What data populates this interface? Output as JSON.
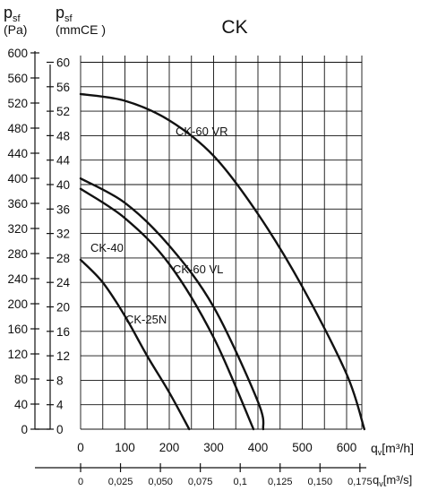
{
  "chart_data": {
    "type": "line",
    "title": "CK",
    "left_axis": {
      "symbol": "p",
      "sub": "sf",
      "unit": "(Pa)",
      "ylim": [
        0,
        600
      ],
      "ticks": [
        0,
        40,
        80,
        120,
        160,
        200,
        240,
        280,
        320,
        360,
        400,
        440,
        480,
        520,
        560,
        600
      ]
    },
    "right_axis": {
      "symbol": "p",
      "sub": "sf",
      "unit": "(mmCE )",
      "ylim": [
        0,
        60
      ],
      "ticks": [
        0,
        4,
        8,
        12,
        16,
        20,
        24,
        28,
        32,
        36,
        40,
        44,
        48,
        52,
        56,
        60
      ]
    },
    "x_axis_primary": {
      "symbol": "q",
      "sub": "v",
      "unit": "[m³/h]",
      "xlim": [
        0,
        700
      ],
      "ticks": [
        0,
        100,
        200,
        300,
        400,
        500,
        600
      ]
    },
    "x_axis_secondary": {
      "symbol": "q",
      "sub": "v",
      "unit": "[m³/s]",
      "ticks": [
        0,
        0.025,
        0.05,
        0.075,
        0.1,
        0.125,
        0.15,
        0.175
      ],
      "tick_labels": [
        "0",
        "0,025",
        "0,050",
        "0,075",
        "0,1",
        "0,125",
        "0,150",
        "0,175"
      ]
    },
    "grid": true,
    "series": [
      {
        "name": "CK-60 VR",
        "x": [
          0,
          100,
          200,
          300,
          400,
          500,
          600,
          640
        ],
        "y": [
          548,
          537,
          505,
          447,
          352,
          233,
          90,
          0
        ]
      },
      {
        "name": "CK-60 VL",
        "x": [
          0,
          100,
          200,
          300,
          400,
          412
        ],
        "y": [
          410,
          370,
          300,
          200,
          45,
          0
        ]
      },
      {
        "name": "CK-40",
        "x": [
          0,
          100,
          200,
          300,
          390
        ],
        "y": [
          393,
          345,
          270,
          150,
          0
        ]
      },
      {
        "name": "CK-25N",
        "x": [
          0,
          50,
          100,
          150,
          200,
          245
        ],
        "y": [
          277,
          240,
          185,
          120,
          60,
          0
        ]
      }
    ]
  }
}
